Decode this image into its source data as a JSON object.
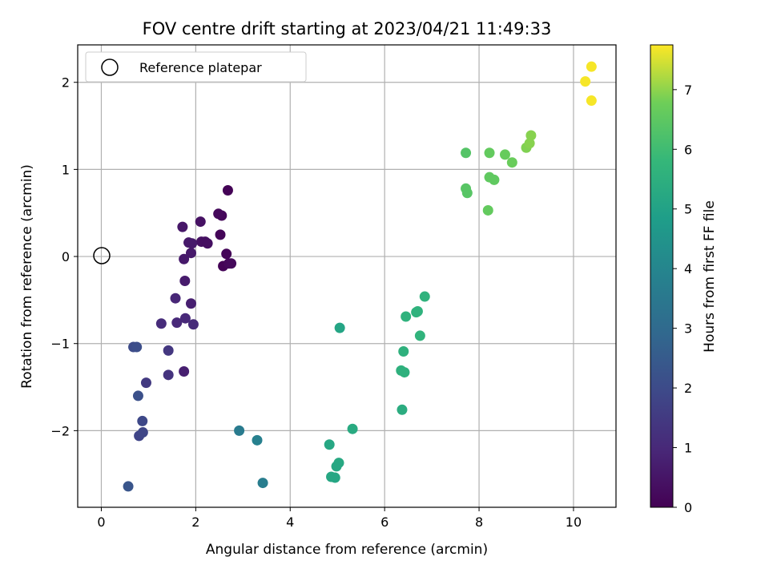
{
  "chart_data": {
    "type": "scatter",
    "title": "FOV centre drift starting at 2023/04/21 11:49:33",
    "xlabel": "Angular distance from reference (arcmin)",
    "ylabel": "Rotation from reference (arcmin)",
    "colorbar_label": "Hours from first FF file",
    "colormap": "viridis",
    "xlim": [
      -0.5,
      10.9
    ],
    "ylim": [
      -2.88,
      2.43
    ],
    "color_range": [
      0,
      7.75
    ],
    "x_ticks": [
      0,
      2,
      4,
      6,
      8,
      10
    ],
    "y_ticks": [
      -2,
      -1,
      0,
      1,
      2
    ],
    "colorbar_ticks": [
      0,
      1,
      2,
      3,
      4,
      5,
      6,
      7
    ],
    "grid": true,
    "legend": {
      "position": "top-left",
      "entries": [
        "Reference platepar"
      ]
    },
    "reference_point": {
      "x": 0,
      "y": 0,
      "label": "Reference platepar"
    },
    "points": [
      {
        "x": 2.68,
        "y": 0.76,
        "h": 0.05
      },
      {
        "x": 2.55,
        "y": 0.47,
        "h": 0.15
      },
      {
        "x": 2.48,
        "y": 0.49,
        "h": 0.2
      },
      {
        "x": 2.52,
        "y": 0.25,
        "h": 0.1
      },
      {
        "x": 2.65,
        "y": 0.03,
        "h": 0.1
      },
      {
        "x": 2.58,
        "y": -0.11,
        "h": 0.05
      },
      {
        "x": 2.7,
        "y": -0.08,
        "h": 0.15
      },
      {
        "x": 2.75,
        "y": -0.08,
        "h": 0.2
      },
      {
        "x": 2.1,
        "y": 0.4,
        "h": 0.4
      },
      {
        "x": 2.12,
        "y": 0.17,
        "h": 0.4
      },
      {
        "x": 2.2,
        "y": 0.17,
        "h": 0.35
      },
      {
        "x": 2.25,
        "y": 0.15,
        "h": 0.35
      },
      {
        "x": 1.72,
        "y": 0.34,
        "h": 0.55
      },
      {
        "x": 1.85,
        "y": 0.16,
        "h": 0.6
      },
      {
        "x": 1.92,
        "y": 0.15,
        "h": 0.6
      },
      {
        "x": 1.9,
        "y": 0.04,
        "h": 0.6
      },
      {
        "x": 1.75,
        "y": -0.03,
        "h": 0.6
      },
      {
        "x": 1.77,
        "y": -0.28,
        "h": 0.65
      },
      {
        "x": 1.9,
        "y": -0.54,
        "h": 0.75
      },
      {
        "x": 1.57,
        "y": -0.48,
        "h": 0.95
      },
      {
        "x": 1.6,
        "y": -0.76,
        "h": 1.0
      },
      {
        "x": 1.78,
        "y": -0.71,
        "h": 1.0
      },
      {
        "x": 1.95,
        "y": -0.78,
        "h": 1.05
      },
      {
        "x": 1.27,
        "y": -0.77,
        "h": 1.1
      },
      {
        "x": 1.75,
        "y": -1.32,
        "h": 0.75
      },
      {
        "x": 1.42,
        "y": -1.08,
        "h": 1.4
      },
      {
        "x": 1.42,
        "y": -1.36,
        "h": 1.3
      },
      {
        "x": 0.95,
        "y": -1.45,
        "h": 1.5
      },
      {
        "x": 0.68,
        "y": -1.04,
        "h": 2.0
      },
      {
        "x": 0.75,
        "y": -1.04,
        "h": 2.1
      },
      {
        "x": 0.78,
        "y": -1.6,
        "h": 2.15
      },
      {
        "x": 0.87,
        "y": -1.89,
        "h": 1.9
      },
      {
        "x": 0.8,
        "y": -2.06,
        "h": 1.8
      },
      {
        "x": 0.88,
        "y": -2.02,
        "h": 1.85
      },
      {
        "x": 0.57,
        "y": -2.64,
        "h": 2.3
      },
      {
        "x": 2.92,
        "y": -2.0,
        "h": 3.6
      },
      {
        "x": 3.3,
        "y": -2.11,
        "h": 3.8
      },
      {
        "x": 3.42,
        "y": -2.6,
        "h": 3.7
      },
      {
        "x": 5.05,
        "y": -0.82,
        "h": 5.1
      },
      {
        "x": 4.83,
        "y": -2.16,
        "h": 5.2
      },
      {
        "x": 5.32,
        "y": -1.98,
        "h": 5.3
      },
      {
        "x": 5.03,
        "y": -2.37,
        "h": 5.25
      },
      {
        "x": 4.98,
        "y": -2.41,
        "h": 5.2
      },
      {
        "x": 4.87,
        "y": -2.53,
        "h": 5.2
      },
      {
        "x": 4.95,
        "y": -2.54,
        "h": 5.15
      },
      {
        "x": 6.37,
        "y": -1.76,
        "h": 5.4
      },
      {
        "x": 6.35,
        "y": -1.31,
        "h": 5.55
      },
      {
        "x": 6.42,
        "y": -1.33,
        "h": 5.55
      },
      {
        "x": 6.4,
        "y": -1.09,
        "h": 5.55
      },
      {
        "x": 6.45,
        "y": -0.69,
        "h": 5.6
      },
      {
        "x": 6.67,
        "y": -0.64,
        "h": 5.6
      },
      {
        "x": 6.7,
        "y": -0.63,
        "h": 5.6
      },
      {
        "x": 6.75,
        "y": -0.91,
        "h": 5.65
      },
      {
        "x": 6.85,
        "y": -0.46,
        "h": 5.6
      },
      {
        "x": 7.72,
        "y": 1.19,
        "h": 6.35
      },
      {
        "x": 7.72,
        "y": 0.78,
        "h": 6.4
      },
      {
        "x": 7.75,
        "y": 0.73,
        "h": 6.4
      },
      {
        "x": 8.22,
        "y": 1.19,
        "h": 6.6
      },
      {
        "x": 8.22,
        "y": 0.91,
        "h": 6.55
      },
      {
        "x": 8.32,
        "y": 0.88,
        "h": 6.55
      },
      {
        "x": 8.19,
        "y": 0.53,
        "h": 6.6
      },
      {
        "x": 8.55,
        "y": 1.17,
        "h": 6.65
      },
      {
        "x": 8.7,
        "y": 1.08,
        "h": 6.7
      },
      {
        "x": 9.0,
        "y": 1.25,
        "h": 6.9
      },
      {
        "x": 9.07,
        "y": 1.3,
        "h": 6.95
      },
      {
        "x": 9.1,
        "y": 1.39,
        "h": 6.95
      },
      {
        "x": 10.25,
        "y": 2.01,
        "h": 7.7
      },
      {
        "x": 10.38,
        "y": 2.18,
        "h": 7.7
      },
      {
        "x": 10.38,
        "y": 1.79,
        "h": 7.7
      }
    ]
  }
}
